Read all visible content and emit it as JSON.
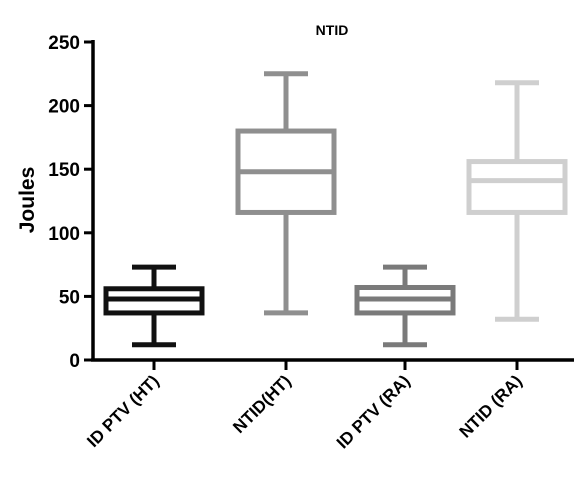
{
  "chart_data": {
    "type": "boxplot",
    "title": "NTID",
    "ylabel": "Joules",
    "xlabel": "",
    "ylim": [
      0,
      250
    ],
    "yticks": [
      0,
      50,
      100,
      150,
      200,
      250
    ],
    "categories": [
      "ID PTV (HT)",
      "NTID(HT)",
      "ID PTV (RA)",
      "NTID (RA)"
    ],
    "boxes": [
      {
        "category": "ID PTV (HT)",
        "min": 12,
        "q1": 37,
        "median": 48,
        "q3": 56,
        "max": 73,
        "color": "#111111"
      },
      {
        "category": "NTID(HT)",
        "min": 37,
        "q1": 116,
        "median": 148,
        "q3": 180,
        "max": 225,
        "color": "#8f8f8f"
      },
      {
        "category": "ID PTV (RA)",
        "min": 12,
        "q1": 37,
        "median": 48,
        "q3": 57,
        "max": 73,
        "color": "#7a7a7a"
      },
      {
        "category": "NTID (RA)",
        "min": 32,
        "q1": 116,
        "median": 141,
        "q3": 156,
        "max": 218,
        "color": "#cfcfcf"
      }
    ],
    "grid": false,
    "legend": "none"
  }
}
